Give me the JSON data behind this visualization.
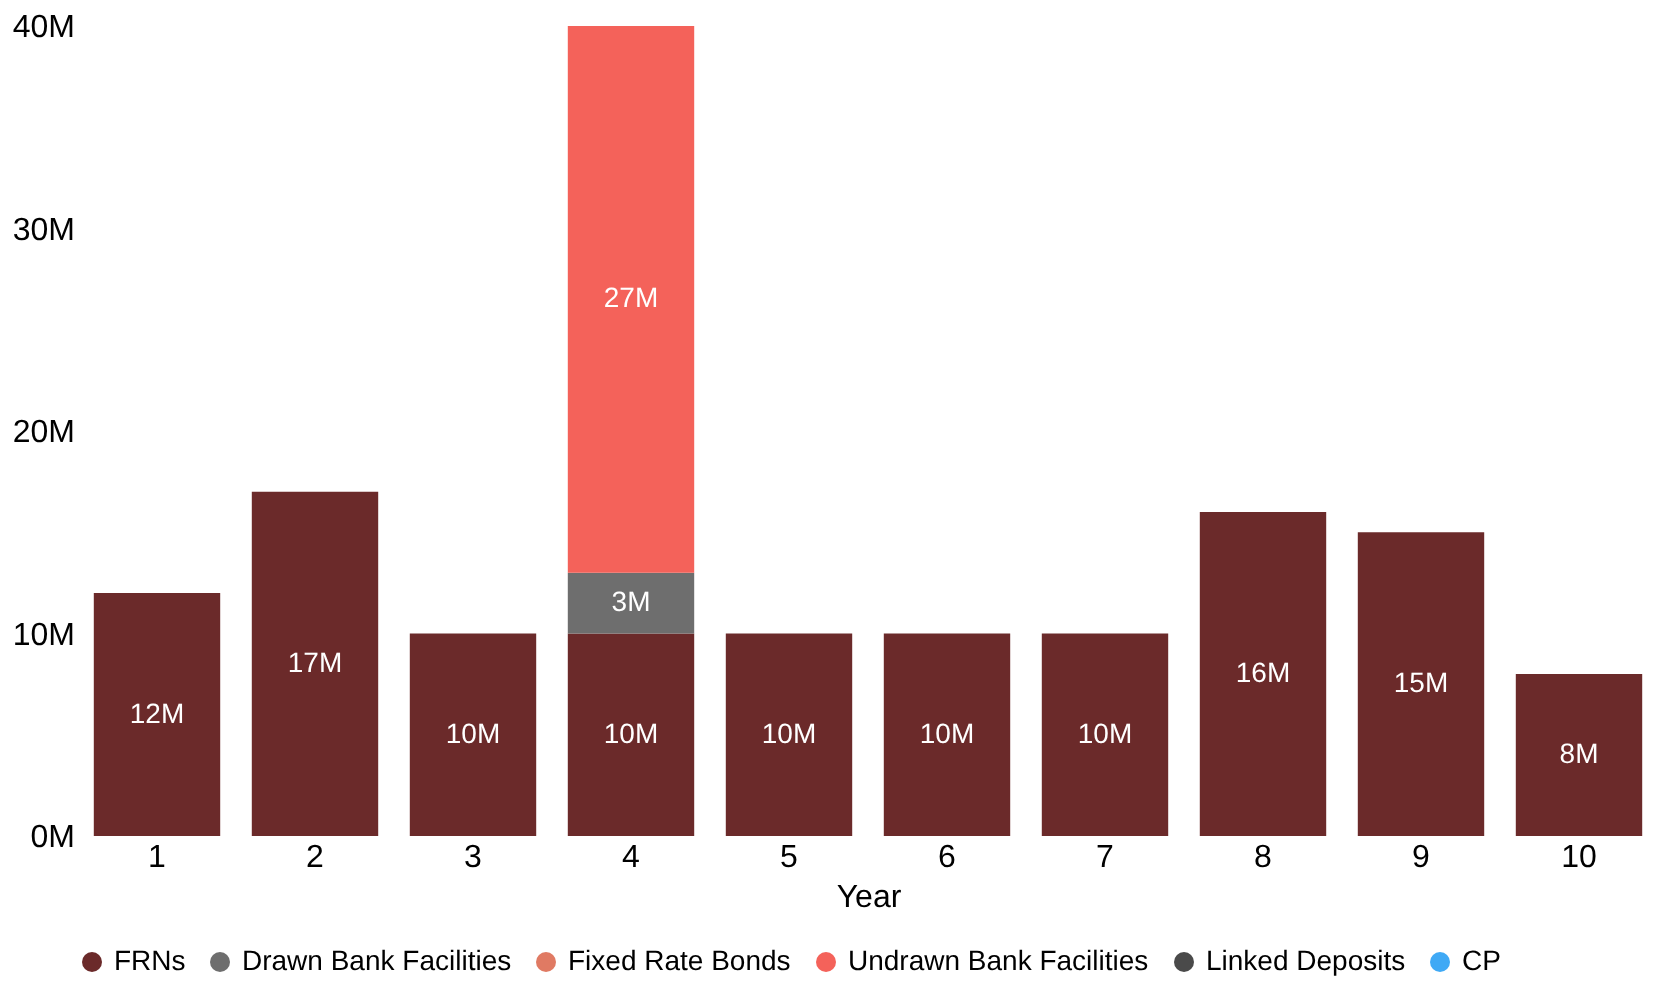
{
  "chart_data": {
    "type": "bar",
    "stacked": true,
    "xlabel": "Year",
    "categories": [
      "1",
      "2",
      "3",
      "4",
      "5",
      "6",
      "7",
      "8",
      "9",
      "10"
    ],
    "series": [
      {
        "name": "FRNs",
        "color": "#6b2a2a",
        "values": [
          12,
          17,
          10,
          10,
          10,
          10,
          10,
          16,
          15,
          8
        ],
        "value_labels": [
          "12M",
          "17M",
          "10M",
          "10M",
          "10M",
          "10M",
          "10M",
          "16M",
          "15M",
          "8M"
        ]
      },
      {
        "name": "Drawn Bank Facilities",
        "color": "#6e6e6e",
        "values": [
          null,
          null,
          null,
          3,
          null,
          null,
          null,
          null,
          null,
          null
        ],
        "value_labels": [
          null,
          null,
          null,
          "3M",
          null,
          null,
          null,
          null,
          null,
          null
        ]
      },
      {
        "name": "Fixed Rate Bonds",
        "color": "#e07a63",
        "values": [
          null,
          null,
          null,
          null,
          null,
          null,
          null,
          null,
          null,
          null
        ]
      },
      {
        "name": "Undrawn Bank Facilities",
        "color": "#f4625a",
        "values": [
          null,
          null,
          null,
          27,
          null,
          null,
          null,
          null,
          null,
          null
        ],
        "value_labels": [
          null,
          null,
          null,
          "27M",
          null,
          null,
          null,
          null,
          null,
          null
        ]
      },
      {
        "name": "Linked Deposits",
        "color": "#4a4a4a",
        "values": [
          null,
          null,
          null,
          null,
          null,
          null,
          null,
          null,
          null,
          null
        ]
      },
      {
        "name": "CP",
        "color": "#3fa9f5",
        "values": [
          null,
          null,
          null,
          null,
          null,
          null,
          null,
          null,
          null,
          null
        ]
      }
    ],
    "ylim": [
      0,
      40
    ],
    "yticks": [
      {
        "value": 0,
        "label": "0M"
      },
      {
        "value": 10,
        "label": "10M"
      },
      {
        "value": 20,
        "label": "20M"
      },
      {
        "value": 30,
        "label": "30M"
      },
      {
        "value": 40,
        "label": "40M"
      }
    ],
    "grid": false,
    "legend": "bottom"
  }
}
